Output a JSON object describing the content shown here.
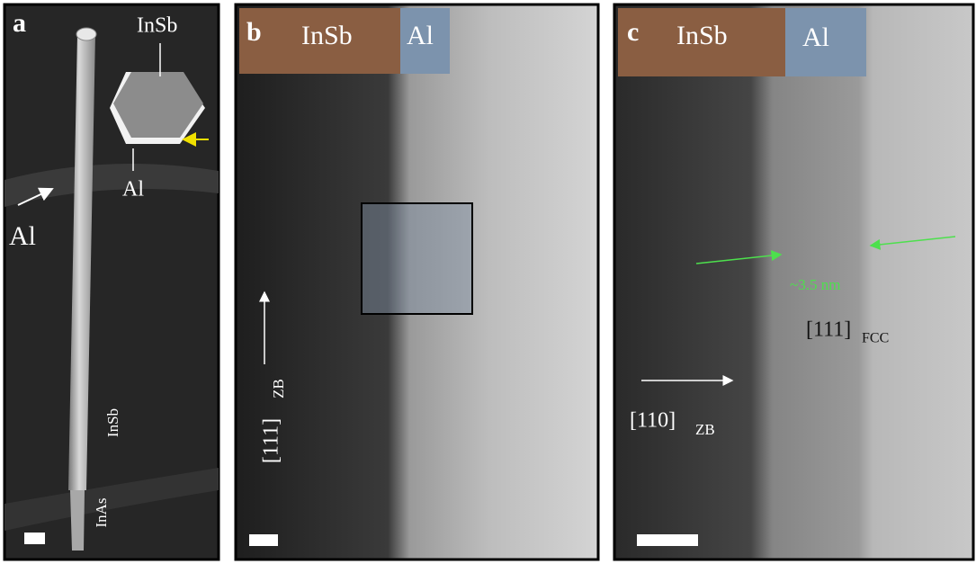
{
  "panels": [
    {
      "letter": "a",
      "inset_top": "InSb",
      "inset_bottom": "Al",
      "arrow_label": "Al",
      "wire_upper": "InSb",
      "wire_lower": "InAs"
    },
    {
      "letter": "b",
      "band_left": "InSb",
      "band_right": "Al",
      "direction": "[111]",
      "direction_sub": "ZB"
    },
    {
      "letter": "c",
      "band_left": "InSb",
      "band_right": "Al",
      "thickness": "~3.5 nm",
      "direction_fcc": "[111]",
      "direction_fcc_sub": "FCC",
      "direction_zb": "[110]",
      "direction_zb_sub": "ZB"
    }
  ]
}
